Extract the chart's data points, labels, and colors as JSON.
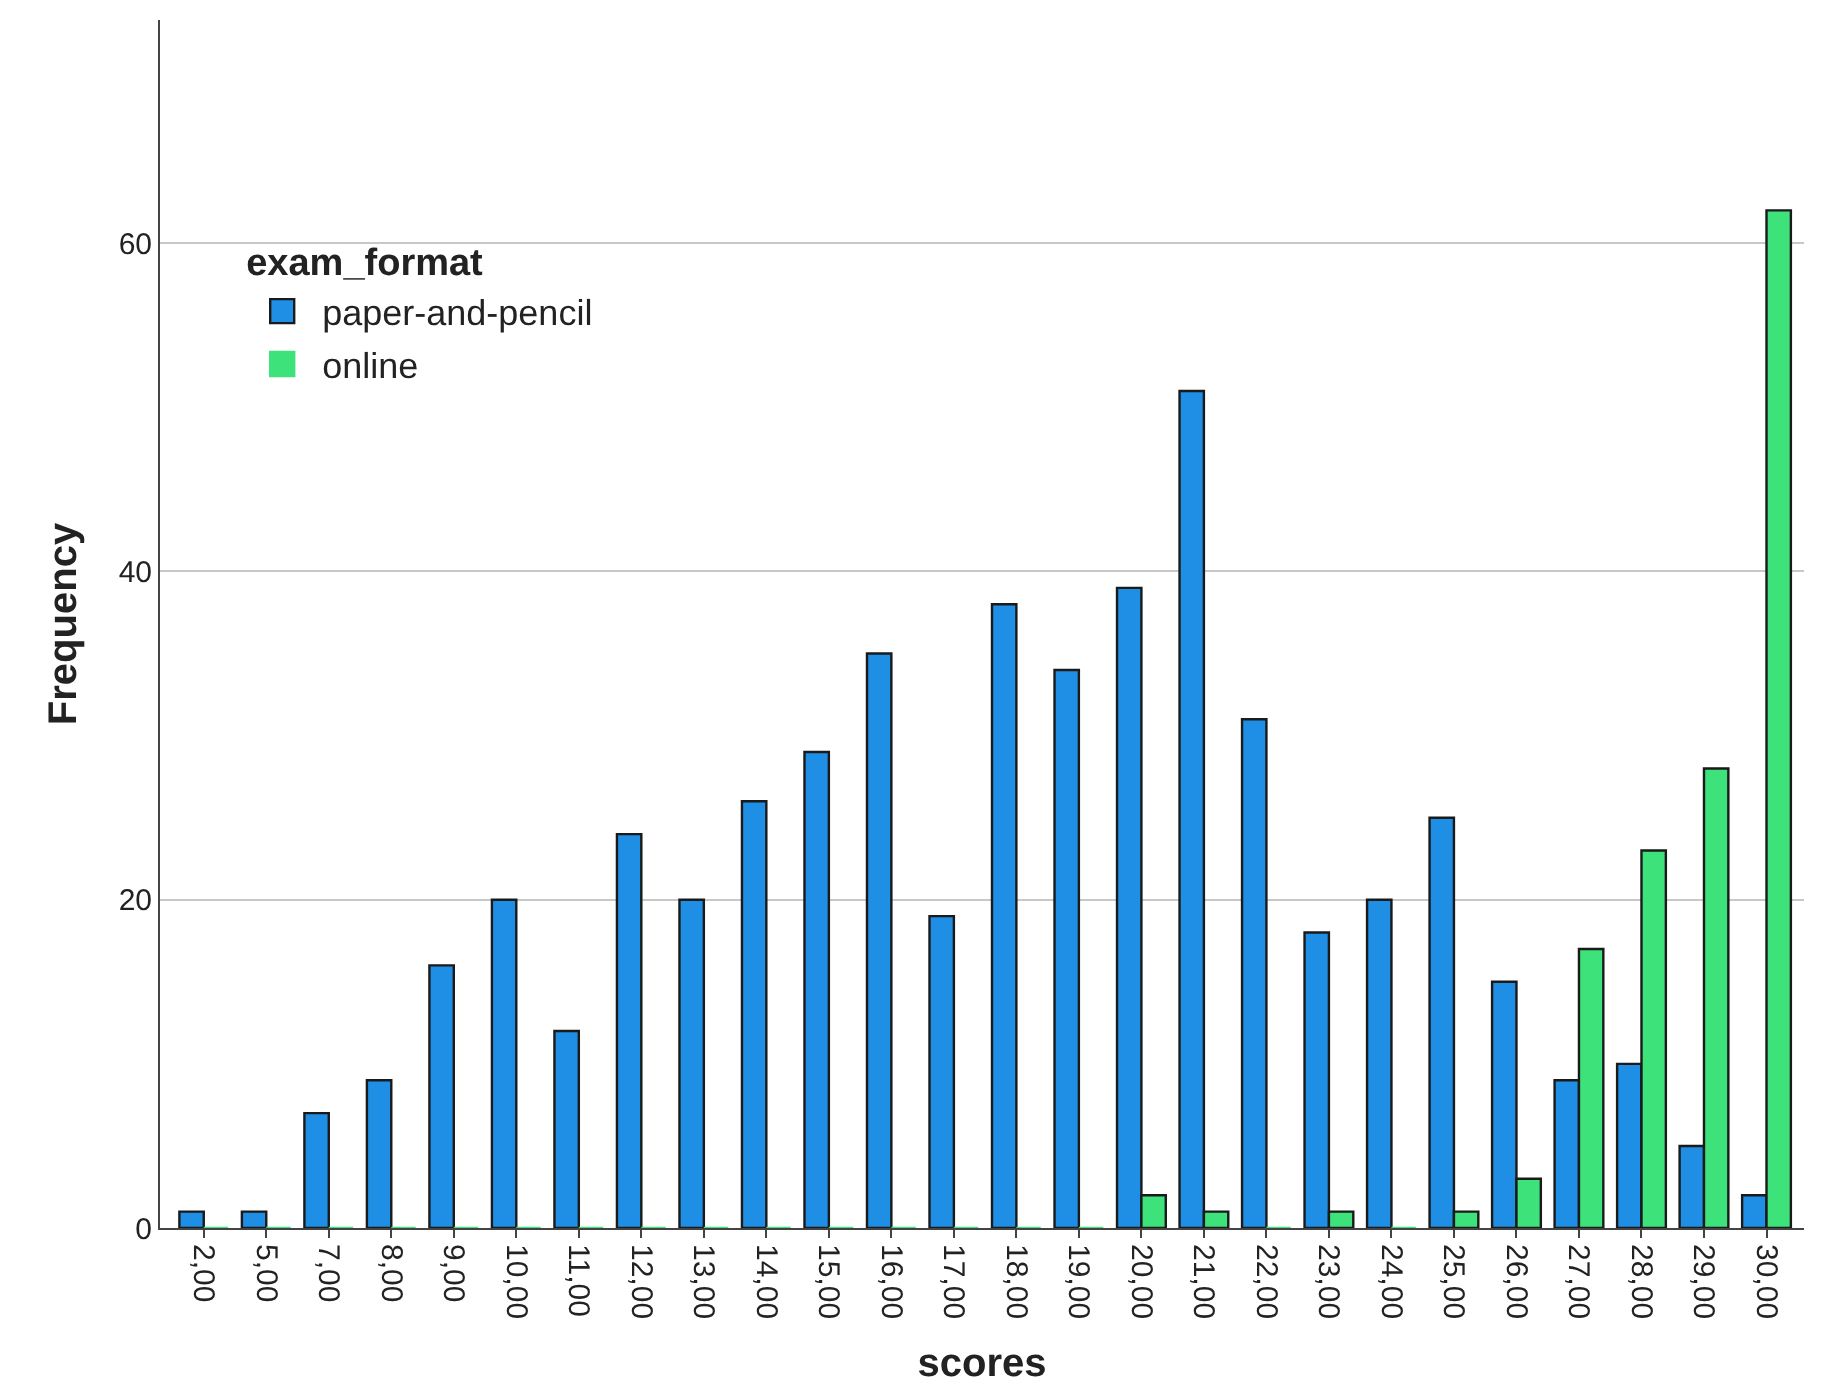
{
  "chart_data": {
    "type": "bar",
    "xlabel": "scores",
    "ylabel": "Frequency",
    "legend_title": "exam_format",
    "categories": [
      "2,00",
      "5,00",
      "7,00",
      "8,00",
      "9,00",
      "10,00",
      "11,00",
      "12,00",
      "13,00",
      "14,00",
      "15,00",
      "16,00",
      "17,00",
      "18,00",
      "19,00",
      "20,00",
      "21,00",
      "22,00",
      "23,00",
      "24,00",
      "25,00",
      "26,00",
      "27,00",
      "28,00",
      "29,00",
      "30,00"
    ],
    "series": [
      {
        "name": "paper-and-pencil",
        "color": "#1f8fe5",
        "values": [
          1,
          1,
          7,
          9,
          16,
          20,
          12,
          24,
          20,
          26,
          29,
          35,
          19,
          38,
          34,
          39,
          51,
          31,
          18,
          20,
          25,
          15,
          9,
          10,
          5,
          2
        ]
      },
      {
        "name": "online",
        "color": "#3ee27a",
        "values": [
          0,
          0,
          0,
          0,
          0,
          0,
          0,
          0,
          0,
          0,
          0,
          0,
          0,
          0,
          0,
          2,
          1,
          0,
          1,
          0,
          1,
          3,
          17,
          23,
          28,
          62
        ]
      }
    ],
    "ylim": [
      0,
      73.6
    ],
    "yticks": [
      0,
      20,
      40,
      60
    ],
    "grid": "y",
    "legend": "top left"
  }
}
